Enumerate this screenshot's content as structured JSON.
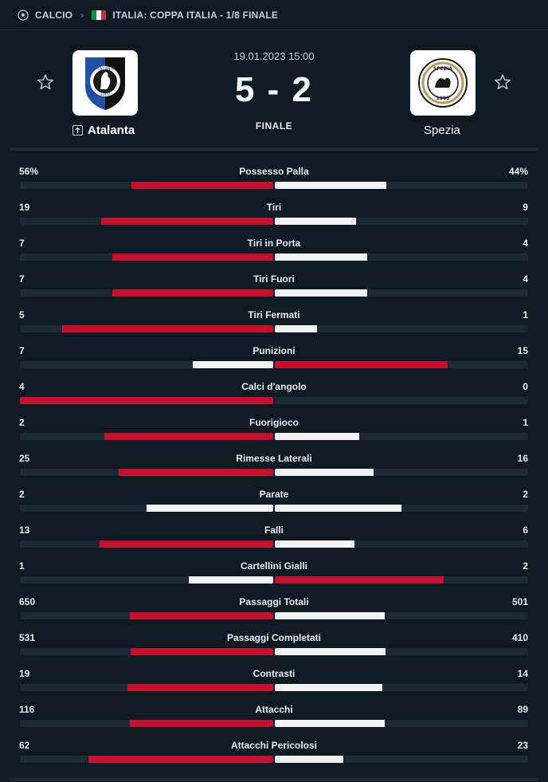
{
  "breadcrumb": {
    "sport": "CALCIO",
    "competition": "ITALIA: COPPA ITALIA - 1/8 FINALE",
    "sport_icon": "soccer-ball-icon",
    "separator_icon": "chevron-right-icon",
    "flag_colors": [
      "#009246",
      "#ffffff",
      "#ce2b37"
    ]
  },
  "match": {
    "datetime": "19.01.2023 15:00",
    "score": "5 - 2",
    "status": "FINALE",
    "home": {
      "name": "Atalanta",
      "logo_icon": "atalanta-logo",
      "logo_text": "ATALANTA",
      "logo_year": "1907",
      "favorite_icon": "star-outline-icon",
      "badge_icon": "arrow-up-icon"
    },
    "away": {
      "name": "Spezia",
      "logo_icon": "spezia-logo",
      "logo_text": "SPEZIA",
      "logo_year": "1906",
      "favorite_icon": "star-outline-icon"
    }
  },
  "colors": {
    "background": "#0f1b23",
    "winner_bar": "#c8102e",
    "loser_bar": "#f0f2f4",
    "track": "#1b2a33"
  },
  "stats": [
    {
      "name": "Possesso Palla",
      "home": "56%",
      "away": "44%",
      "home_value": 56,
      "away_value": 44
    },
    {
      "name": "Tiri",
      "home": "19",
      "away": "9",
      "home_value": 19,
      "away_value": 9
    },
    {
      "name": "Tiri in Porta",
      "home": "7",
      "away": "4",
      "home_value": 7,
      "away_value": 4
    },
    {
      "name": "Tiri Fuori",
      "home": "7",
      "away": "4",
      "home_value": 7,
      "away_value": 4
    },
    {
      "name": "Tiri Fermati",
      "home": "5",
      "away": "1",
      "home_value": 5,
      "away_value": 1
    },
    {
      "name": "Punizioni",
      "home": "7",
      "away": "15",
      "home_value": 7,
      "away_value": 15
    },
    {
      "name": "Calci d'angolo",
      "home": "4",
      "away": "0",
      "home_value": 4,
      "away_value": 0
    },
    {
      "name": "Fuorigioco",
      "home": "2",
      "away": "1",
      "home_value": 2,
      "away_value": 1
    },
    {
      "name": "Rimesse Laterali",
      "home": "25",
      "away": "16",
      "home_value": 25,
      "away_value": 16
    },
    {
      "name": "Parate",
      "home": "2",
      "away": "2",
      "home_value": 2,
      "away_value": 2
    },
    {
      "name": "Falli",
      "home": "13",
      "away": "6",
      "home_value": 13,
      "away_value": 6
    },
    {
      "name": "Cartellini Gialli",
      "home": "1",
      "away": "2",
      "home_value": 1,
      "away_value": 2
    },
    {
      "name": "Passaggi Totali",
      "home": "650",
      "away": "501",
      "home_value": 650,
      "away_value": 501
    },
    {
      "name": "Passaggi Completati",
      "home": "531",
      "away": "410",
      "home_value": 531,
      "away_value": 410
    },
    {
      "name": "Contrasti",
      "home": "19",
      "away": "14",
      "home_value": 19,
      "away_value": 14
    },
    {
      "name": "Attacchi",
      "home": "116",
      "away": "89",
      "home_value": 116,
      "away_value": 89
    },
    {
      "name": "Attacchi Pericolosi",
      "home": "62",
      "away": "23",
      "home_value": 62,
      "away_value": 23
    }
  ]
}
